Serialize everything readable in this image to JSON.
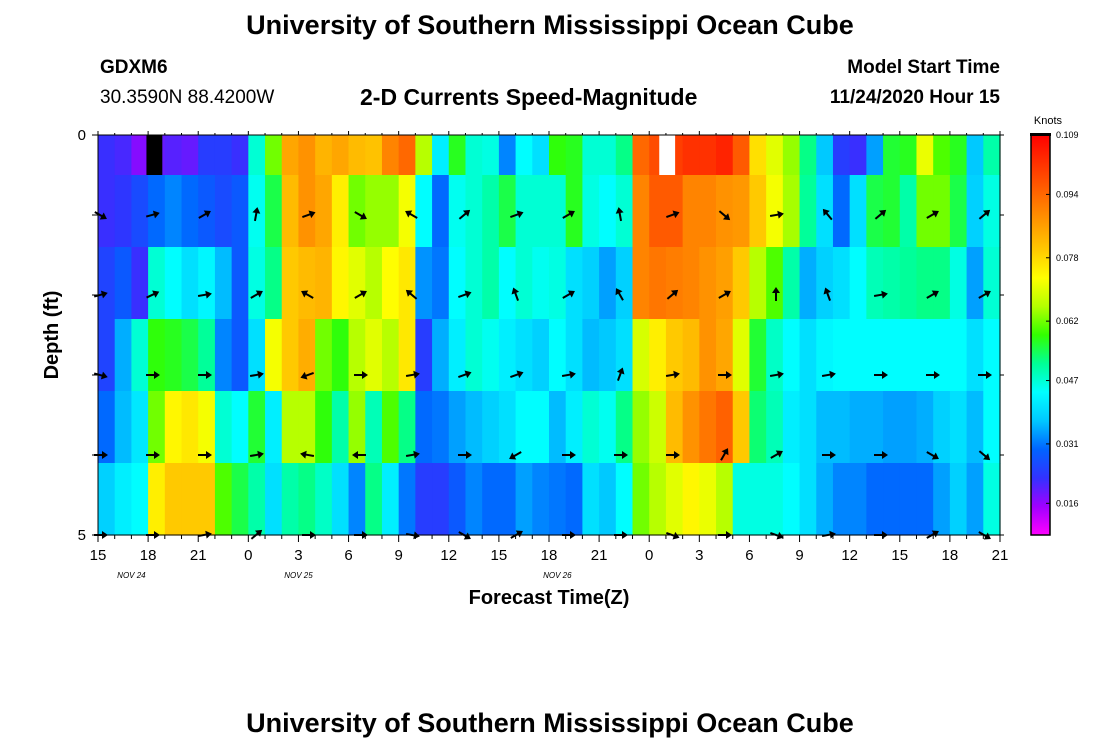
{
  "header": {
    "title": "University of Southern Mississippi Ocean Cube",
    "station": "GDXM6",
    "coords": "30.3590N 88.4200W",
    "chart_title": "2-D Currents Speed-Magnitude",
    "model_start_label": "Model Start Time",
    "model_start_value": "11/24/2020 Hour 15"
  },
  "footer": {
    "title": "University of Southern Mississippi Ocean Cube"
  },
  "chart_data": {
    "type": "heatmap",
    "title": "2-D Currents Speed-Magnitude",
    "xlabel": "Forecast Time(Z)",
    "ylabel": "Depth (ft)",
    "ylim": [
      0,
      5
    ],
    "y_ticks": [
      "0",
      "5"
    ],
    "x_tick_labels": [
      "15",
      "18",
      "21",
      "0",
      "3",
      "6",
      "9",
      "12",
      "15",
      "18",
      "21",
      "0",
      "3",
      "6",
      "9",
      "12",
      "15",
      "18",
      "21"
    ],
    "date_labels": [
      {
        "label": "NOV  24",
        "hour_index": 2
      },
      {
        "label": "NOV  25",
        "hour_index": 12
      },
      {
        "label": "NOV  26",
        "hour_index": 27.5
      }
    ],
    "hours": 54,
    "depth_layers": 5,
    "colorbar": {
      "unit": "Knots",
      "tick_labels": [
        "0.109",
        "0.094",
        "0.078",
        "0.062",
        "0.047",
        "0.031",
        "0.016"
      ],
      "range": [
        0.008,
        0.109
      ],
      "colors": [
        "#ff00ff",
        "#a000ff",
        "#3232ff",
        "#0064ff",
        "#00c8ff",
        "#00ffff",
        "#00ff96",
        "#32ff00",
        "#b4ff00",
        "#ffff00",
        "#ffc800",
        "#ff9600",
        "#ff6400",
        "#ff3200",
        "#ff0000"
      ]
    },
    "speed": [
      [
        0.022,
        0.021,
        0.017,
        0.019,
        0.02,
        0.019,
        0.024,
        0.024,
        0.022,
        0.047,
        0.062,
        0.085,
        0.088,
        0.083,
        0.085,
        0.082,
        0.081,
        0.09,
        0.094,
        0.066,
        0.042,
        0.057,
        0.047,
        0.046,
        0.032,
        0.044,
        0.04,
        0.058,
        0.057,
        0.047,
        0.047,
        0.052,
        0.094,
        0.098,
        0.1,
        0.102,
        0.102,
        0.104,
        0.096,
        0.077,
        0.07,
        0.064,
        0.052,
        0.037,
        0.024,
        0.022,
        0.034,
        0.056,
        0.057,
        0.071,
        0.06,
        0.057,
        0.037,
        0.05
      ],
      [
        0.022,
        0.023,
        0.026,
        0.03,
        0.032,
        0.03,
        0.028,
        0.026,
        0.028,
        0.045,
        0.055,
        0.082,
        0.088,
        0.085,
        0.075,
        0.062,
        0.064,
        0.064,
        0.072,
        0.044,
        0.03,
        0.045,
        0.047,
        0.05,
        0.055,
        0.047,
        0.047,
        0.047,
        0.057,
        0.046,
        0.044,
        0.047,
        0.09,
        0.096,
        0.096,
        0.09,
        0.09,
        0.088,
        0.087,
        0.08,
        0.072,
        0.065,
        0.051,
        0.04,
        0.03,
        0.04,
        0.055,
        0.056,
        0.05,
        0.062,
        0.062,
        0.055,
        0.038,
        0.046
      ],
      [
        0.025,
        0.028,
        0.022,
        0.047,
        0.044,
        0.04,
        0.043,
        0.036,
        0.028,
        0.046,
        0.052,
        0.08,
        0.082,
        0.083,
        0.074,
        0.07,
        0.066,
        0.073,
        0.076,
        0.033,
        0.031,
        0.044,
        0.047,
        0.05,
        0.044,
        0.047,
        0.045,
        0.046,
        0.04,
        0.038,
        0.034,
        0.038,
        0.09,
        0.092,
        0.091,
        0.09,
        0.088,
        0.086,
        0.08,
        0.066,
        0.06,
        0.05,
        0.035,
        0.038,
        0.04,
        0.044,
        0.049,
        0.05,
        0.051,
        0.052,
        0.052,
        0.046,
        0.034,
        0.047
      ],
      [
        0.025,
        0.035,
        0.047,
        0.058,
        0.057,
        0.055,
        0.051,
        0.032,
        0.028,
        0.04,
        0.072,
        0.08,
        0.084,
        0.062,
        0.058,
        0.066,
        0.07,
        0.066,
        0.076,
        0.024,
        0.035,
        0.042,
        0.047,
        0.045,
        0.042,
        0.04,
        0.038,
        0.044,
        0.04,
        0.036,
        0.037,
        0.04,
        0.069,
        0.075,
        0.08,
        0.082,
        0.088,
        0.085,
        0.07,
        0.056,
        0.048,
        0.044,
        0.04,
        0.043,
        0.044,
        0.044,
        0.044,
        0.044,
        0.044,
        0.044,
        0.044,
        0.044,
        0.04,
        0.044
      ],
      [
        0.03,
        0.036,
        0.041,
        0.062,
        0.074,
        0.076,
        0.072,
        0.047,
        0.044,
        0.056,
        0.042,
        0.066,
        0.066,
        0.058,
        0.05,
        0.064,
        0.049,
        0.06,
        0.052,
        0.03,
        0.031,
        0.034,
        0.036,
        0.038,
        0.04,
        0.044,
        0.044,
        0.036,
        0.042,
        0.047,
        0.045,
        0.052,
        0.064,
        0.068,
        0.082,
        0.088,
        0.092,
        0.095,
        0.08,
        0.053,
        0.049,
        0.042,
        0.04,
        0.036,
        0.036,
        0.035,
        0.035,
        0.034,
        0.034,
        0.035,
        0.038,
        0.04,
        0.036,
        0.044
      ],
      [
        0.038,
        0.042,
        0.044,
        0.075,
        0.08,
        0.08,
        0.08,
        0.06,
        0.055,
        0.05,
        0.04,
        0.05,
        0.052,
        0.048,
        0.04,
        0.032,
        0.052,
        0.042,
        0.031,
        0.024,
        0.024,
        0.028,
        0.032,
        0.03,
        0.03,
        0.034,
        0.032,
        0.031,
        0.03,
        0.04,
        0.037,
        0.044,
        0.062,
        0.066,
        0.07,
        0.074,
        0.071,
        0.066,
        0.046,
        0.046,
        0.046,
        0.044,
        0.04,
        0.035,
        0.032,
        0.032,
        0.03,
        0.03,
        0.03,
        0.03,
        0.034,
        0.038,
        0.034,
        0.046
      ]
    ],
    "arrow_angles_deg": [
      [
        30,
        -15,
        -30,
        -80,
        -20,
        30,
        -150,
        -40,
        -20,
        -30,
        -100,
        -20,
        40,
        -10,
        -130,
        -40,
        -30,
        -40,
        -10,
        30,
        -20,
        -80,
        -90,
        -110,
        -20,
        -20,
        10
      ],
      [
        -15,
        -25,
        -10,
        -30,
        -150,
        -30,
        -140,
        -20,
        -110,
        -30,
        -120,
        -40,
        -30,
        -90,
        -110,
        -10,
        -30,
        -30,
        -10,
        -140,
        -20,
        -10,
        0,
        -30,
        -30,
        -50
      ],
      [
        15,
        0,
        0,
        -10,
        160,
        0,
        -10,
        -20,
        -20,
        -10,
        -70,
        -10,
        0,
        -10,
        -10,
        0,
        0,
        0,
        0,
        180,
        0,
        0,
        0,
        0,
        -10,
        -160
      ],
      [
        0,
        0,
        0,
        -10,
        -170,
        180,
        -10,
        0,
        150,
        0,
        0,
        0,
        -60,
        -30,
        0,
        0,
        30,
        40,
        0,
        170,
        0,
        0,
        0,
        0,
        10,
        0
      ],
      [
        0,
        0,
        -10,
        -40,
        0,
        0,
        10,
        30,
        -30,
        0,
        0,
        20,
        0,
        20,
        -10,
        0,
        -30,
        30,
        0,
        0,
        0,
        0,
        0,
        0,
        0,
        0
      ]
    ]
  }
}
